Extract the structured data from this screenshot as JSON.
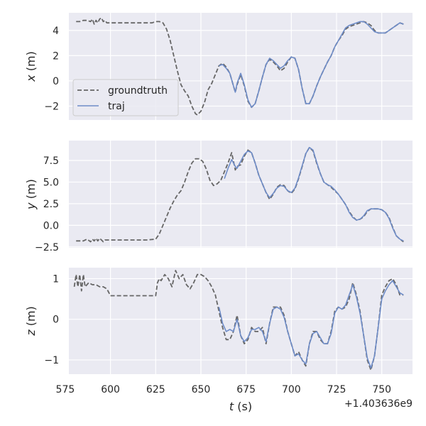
{
  "theme": {
    "panel_bg": "#eaeaf2",
    "grid": "#ffffff",
    "groundtruth_color": "#666666",
    "traj_color": "#6e8cc8"
  },
  "chart_data": [
    {
      "type": "line",
      "ylabel_var": "x",
      "ylabel_unit": " (m)",
      "ylim": [
        -3.1,
        5.4
      ],
      "yticks": [
        -2,
        0,
        2,
        4
      ],
      "ytick_labels": [
        "−2",
        "0",
        "2",
        "4"
      ],
      "legend": "center-left",
      "series": [
        {
          "name": "groundtruth",
          "style": "dashed",
          "x": [
            581,
            583,
            585,
            587,
            589,
            590,
            591,
            592,
            593,
            594,
            595,
            596,
            597,
            598,
            600,
            605,
            610,
            615,
            620,
            623,
            625,
            627,
            629,
            631,
            633,
            635,
            637,
            639,
            641,
            643,
            645,
            647,
            648,
            650,
            652,
            654,
            656,
            658,
            660,
            662,
            664,
            666,
            668,
            669,
            670,
            672,
            674,
            676,
            678,
            680,
            682,
            684,
            686,
            688,
            690,
            692,
            694,
            696,
            698,
            700,
            702,
            704,
            706,
            708,
            710,
            712,
            714,
            716,
            718,
            720,
            722,
            724,
            726,
            728,
            730,
            732,
            734,
            736,
            738,
            740,
            742,
            744,
            746,
            748,
            750,
            752,
            754,
            756,
            758,
            760,
            762
          ],
          "y": [
            4.7,
            4.7,
            4.8,
            4.8,
            4.7,
            4.9,
            4.5,
            4.8,
            4.6,
            4.9,
            5.0,
            4.7,
            4.8,
            4.6,
            4.6,
            4.6,
            4.6,
            4.6,
            4.6,
            4.6,
            4.7,
            4.7,
            4.6,
            4.1,
            3.2,
            2.0,
            0.8,
            -0.3,
            -0.8,
            -1.2,
            -2.0,
            -2.6,
            -2.7,
            -2.4,
            -1.7,
            -0.7,
            -0.2,
            0.5,
            1.2,
            1.4,
            1.1,
            0.6,
            -0.4,
            -0.9,
            -0.3,
            0.5,
            -0.4,
            -1.6,
            -2.1,
            -1.8,
            -0.8,
            0.3,
            1.3,
            1.7,
            1.5,
            1.2,
            0.8,
            1.0,
            1.5,
            1.9,
            1.8,
            0.9,
            -0.6,
            -1.8,
            -1.8,
            -1.2,
            -0.4,
            0.3,
            0.9,
            1.5,
            2.0,
            2.7,
            3.2,
            3.6,
            4.1,
            4.3,
            4.4,
            4.5,
            4.6,
            4.7,
            4.6,
            4.4,
            4.0,
            3.8,
            3.8,
            3.8,
            4.0,
            4.2,
            4.4,
            4.6,
            4.5
          ]
        },
        {
          "name": "traj",
          "style": "solid",
          "x": [
            660,
            662,
            664,
            666,
            668,
            669,
            670,
            672,
            674,
            676,
            678,
            680,
            682,
            684,
            686,
            688,
            690,
            692,
            694,
            696,
            698,
            700,
            702,
            704,
            706,
            708,
            710,
            712,
            714,
            716,
            718,
            720,
            722,
            724,
            726,
            728,
            730,
            732,
            734,
            736,
            738,
            740,
            742,
            744,
            746,
            748,
            750,
            752,
            754,
            756,
            758,
            760,
            762
          ],
          "y": [
            1.2,
            1.3,
            1.0,
            0.6,
            -0.4,
            -0.9,
            -0.2,
            0.6,
            -0.3,
            -1.5,
            -2.1,
            -1.8,
            -0.8,
            0.3,
            1.3,
            1.8,
            1.6,
            1.3,
            1.0,
            1.2,
            1.6,
            1.9,
            1.8,
            0.9,
            -0.6,
            -1.8,
            -1.8,
            -1.2,
            -0.4,
            0.3,
            0.9,
            1.5,
            2.0,
            2.7,
            3.2,
            3.7,
            4.2,
            4.4,
            4.5,
            4.6,
            4.7,
            4.7,
            4.5,
            4.2,
            3.9,
            3.8,
            3.8,
            3.8,
            4.0,
            4.2,
            4.4,
            4.6,
            4.5
          ]
        }
      ]
    },
    {
      "type": "line",
      "ylabel_var": "y",
      "ylabel_unit": " (m)",
      "ylim": [
        -2.6,
        9.8
      ],
      "yticks": [
        -2.5,
        0.0,
        2.5,
        5.0,
        7.5
      ],
      "ytick_labels": [
        "−2.5",
        "0.0",
        "2.5",
        "5.0",
        "7.5"
      ],
      "series": [
        {
          "name": "groundtruth",
          "style": "dashed",
          "x": [
            581,
            583,
            585,
            587,
            589,
            590,
            591,
            592,
            593,
            594,
            595,
            596,
            597,
            598,
            600,
            605,
            610,
            615,
            620,
            625,
            627,
            629,
            631,
            633,
            635,
            637,
            639,
            641,
            643,
            645,
            647,
            649,
            651,
            653,
            655,
            657,
            659,
            661,
            663,
            665,
            667,
            669,
            670,
            672,
            674,
            676,
            678,
            680,
            682,
            684,
            686,
            688,
            690,
            692,
            694,
            696,
            698,
            700,
            702,
            704,
            706,
            708,
            710,
            712,
            714,
            716,
            718,
            720,
            722,
            724,
            726,
            728,
            730,
            732,
            734,
            736,
            738,
            740,
            742,
            744,
            746,
            748,
            750,
            752,
            754,
            756,
            758,
            760,
            762
          ],
          "y": [
            -1.8,
            -1.8,
            -1.8,
            -1.6,
            -1.9,
            -1.6,
            -1.8,
            -1.5,
            -1.8,
            -1.5,
            -1.7,
            -1.9,
            -1.7,
            -1.7,
            -1.7,
            -1.7,
            -1.7,
            -1.7,
            -1.7,
            -1.6,
            -1.0,
            0.0,
            1.0,
            2.0,
            2.8,
            3.5,
            4.0,
            5.0,
            6.2,
            7.2,
            7.7,
            7.7,
            7.4,
            6.5,
            5.2,
            4.6,
            4.8,
            5.2,
            6.2,
            7.2,
            8.4,
            6.4,
            6.8,
            7.0,
            8.0,
            8.7,
            8.4,
            7.2,
            5.8,
            4.8,
            3.8,
            3.0,
            3.6,
            4.4,
            4.7,
            4.6,
            4.0,
            3.7,
            4.2,
            5.4,
            6.8,
            8.3,
            9.0,
            8.6,
            7.2,
            6.0,
            5.0,
            4.7,
            4.4,
            4.0,
            3.6,
            3.0,
            2.4,
            1.6,
            1.0,
            0.6,
            0.7,
            1.0,
            1.6,
            1.9,
            1.9,
            1.9,
            1.8,
            1.5,
            0.9,
            -0.2,
            -1.2,
            -1.6,
            -1.9
          ]
        },
        {
          "name": "traj",
          "style": "solid",
          "x": [
            663,
            665,
            667,
            669,
            670,
            672,
            674,
            676,
            678,
            680,
            682,
            684,
            686,
            688,
            690,
            692,
            694,
            696,
            698,
            700,
            702,
            704,
            706,
            708,
            710,
            712,
            714,
            716,
            718,
            720,
            722,
            724,
            726,
            728,
            730,
            732,
            734,
            736,
            738,
            740,
            742,
            744,
            746,
            748,
            750,
            752,
            754,
            756,
            758,
            760,
            762
          ],
          "y": [
            5.4,
            6.6,
            7.6,
            6.8,
            6.6,
            7.4,
            8.2,
            8.6,
            8.4,
            7.2,
            5.8,
            4.8,
            3.8,
            3.2,
            3.7,
            4.3,
            4.6,
            4.5,
            4.0,
            3.8,
            4.3,
            5.5,
            6.9,
            8.3,
            9.0,
            8.7,
            7.3,
            6.0,
            5.0,
            4.7,
            4.5,
            4.1,
            3.6,
            3.0,
            2.4,
            1.5,
            0.9,
            0.6,
            0.7,
            1.1,
            1.7,
            1.9,
            1.9,
            1.9,
            1.8,
            1.5,
            0.8,
            -0.3,
            -1.2,
            -1.6,
            -1.8
          ]
        }
      ]
    },
    {
      "type": "line",
      "ylabel_var": "z",
      "ylabel_unit": " (m)",
      "xlabel_var": "t",
      "xlabel_unit": " (s)",
      "xlim": [
        577,
        767
      ],
      "xticks": [
        575,
        600,
        625,
        650,
        675,
        700,
        725,
        750
      ],
      "xtick_labels": [
        "575",
        "600",
        "625",
        "650",
        "675",
        "700",
        "725",
        "750"
      ],
      "x_offset": "+1.403636e9",
      "ylim": [
        -1.35,
        1.27
      ],
      "yticks": [
        -1,
        0,
        1
      ],
      "ytick_labels": [
        "−1",
        "0",
        "1"
      ],
      "series": [
        {
          "name": "groundtruth",
          "style": "dashed",
          "x": [
            580,
            581,
            582,
            583,
            584,
            585,
            586,
            587,
            588,
            590,
            592,
            594,
            596,
            598,
            600,
            605,
            610,
            615,
            620,
            625,
            626,
            627,
            628,
            630,
            632,
            634,
            636,
            638,
            640,
            642,
            644,
            646,
            648,
            650,
            652,
            654,
            656,
            658,
            660,
            662,
            664,
            666,
            668,
            670,
            672,
            674,
            676,
            678,
            680,
            682,
            684,
            686,
            688,
            690,
            692,
            694,
            696,
            698,
            700,
            702,
            704,
            706,
            708,
            710,
            712,
            714,
            716,
            718,
            720,
            722,
            724,
            726,
            728,
            730,
            732,
            734,
            736,
            738,
            740,
            742,
            744,
            746,
            748,
            750,
            752,
            754,
            756,
            758,
            760,
            762
          ],
          "y": [
            0.8,
            1.1,
            0.8,
            1.1,
            0.7,
            1.1,
            0.8,
            0.85,
            0.9,
            0.85,
            0.85,
            0.8,
            0.8,
            0.75,
            0.58,
            0.58,
            0.58,
            0.58,
            0.58,
            0.58,
            0.9,
            1.0,
            0.95,
            1.1,
            1.0,
            0.8,
            1.2,
            1.0,
            1.1,
            0.85,
            0.75,
            0.9,
            1.1,
            1.1,
            1.05,
            0.95,
            0.8,
            0.6,
            0.2,
            -0.2,
            -0.5,
            -0.5,
            -0.3,
            0.1,
            -0.4,
            -0.6,
            -0.5,
            -0.2,
            -0.3,
            -0.3,
            -0.2,
            -0.6,
            -0.1,
            0.3,
            0.3,
            0.3,
            0.1,
            -0.3,
            -0.6,
            -0.9,
            -0.8,
            -1.0,
            -1.15,
            -0.6,
            -0.3,
            -0.3,
            -0.5,
            -0.6,
            -0.6,
            -0.3,
            0.2,
            0.3,
            0.25,
            0.3,
            0.5,
            0.9,
            0.6,
            0.2,
            -0.4,
            -1.0,
            -1.25,
            -0.9,
            -0.2,
            0.6,
            0.8,
            0.95,
            1.0,
            0.85,
            0.6,
            0.6
          ]
        },
        {
          "name": "traj",
          "style": "solid",
          "x": [
            660,
            662,
            664,
            666,
            668,
            670,
            672,
            674,
            676,
            678,
            680,
            682,
            684,
            686,
            688,
            690,
            692,
            694,
            696,
            698,
            700,
            702,
            704,
            706,
            708,
            710,
            712,
            714,
            716,
            718,
            720,
            722,
            724,
            726,
            728,
            730,
            732,
            734,
            736,
            738,
            740,
            742,
            744,
            746,
            748,
            750,
            752,
            754,
            756,
            758,
            760,
            762
          ],
          "y": [
            0.3,
            -0.1,
            -0.3,
            -0.25,
            -0.3,
            0.0,
            -0.4,
            -0.55,
            -0.45,
            -0.25,
            -0.25,
            -0.2,
            -0.3,
            -0.55,
            -0.1,
            0.25,
            0.3,
            0.25,
            0.05,
            -0.3,
            -0.6,
            -0.9,
            -0.85,
            -1.0,
            -1.1,
            -0.6,
            -0.35,
            -0.3,
            -0.45,
            -0.6,
            -0.6,
            -0.35,
            0.15,
            0.3,
            0.25,
            0.35,
            0.6,
            0.85,
            0.55,
            0.15,
            -0.4,
            -0.95,
            -1.2,
            -0.9,
            -0.2,
            0.5,
            0.7,
            0.85,
            0.95,
            0.8,
            0.65,
            0.6
          ]
        }
      ]
    }
  ]
}
